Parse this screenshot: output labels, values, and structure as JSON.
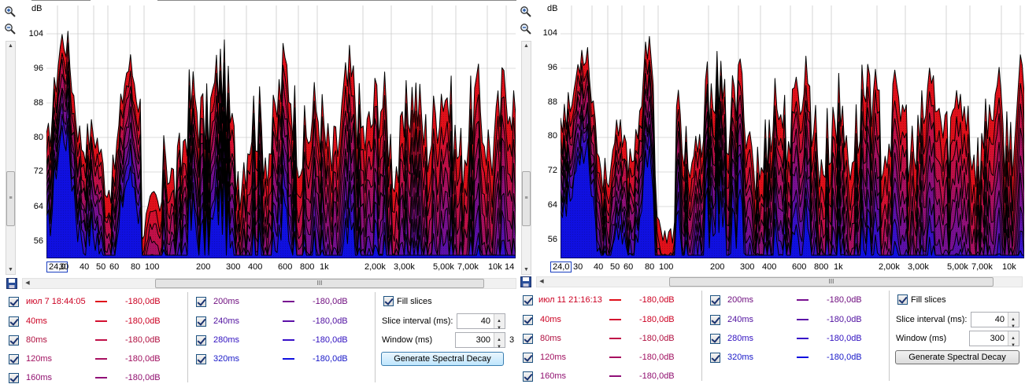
{
  "db_label": "dB",
  "y_labels": [
    "104",
    "96",
    "88",
    "80",
    "72",
    "64",
    "56"
  ],
  "x_start": "24,0",
  "x_labels": [
    "30",
    "40",
    "50",
    "60",
    "80",
    "100",
    "200",
    "300",
    "400",
    "600",
    "800",
    "1k",
    "2,00k",
    "3,00k",
    "5,00k",
    "7,00k",
    "10k",
    "14"
  ],
  "colors": {
    "accent": "#d01020",
    "red_text": "#cc0022",
    "blue_text": "#2020b0",
    "purple_text": "#701080"
  },
  "icons": [
    "zoom-in-icon",
    "zoom-out-icon",
    "save-icon"
  ],
  "left": {
    "slices_col1": [
      {
        "name": "июл 7 18:44:05",
        "value": "-180,0dB",
        "color": "#e0101a"
      },
      {
        "name": "40ms",
        "value": "-180,0dB",
        "color": "#d41030"
      },
      {
        "name": "80ms",
        "value": "-180,0dB",
        "color": "#c01048"
      },
      {
        "name": "120ms",
        "value": "-180,0dB",
        "color": "#a81060"
      },
      {
        "name": "160ms",
        "value": "-180,0dB",
        "color": "#901078"
      }
    ],
    "slices_col2": [
      {
        "name": "200ms",
        "value": "-180,0dB",
        "color": "#781090"
      },
      {
        "name": "240ms",
        "value": "-180,0dB",
        "color": "#5c10a8"
      },
      {
        "name": "280ms",
        "value": "-180,0dB",
        "color": "#3810c8"
      },
      {
        "name": "320ms",
        "value": "-180,0dB",
        "color": "#1010e0"
      }
    ],
    "fill_slices": "Fill slices",
    "slice_interval_label": "Slice interval (ms):",
    "slice_interval": "40",
    "window_label": "Window (ms)",
    "window": "300",
    "window_suffix": "3",
    "generate_button": "Generate Spectral Decay"
  },
  "right": {
    "slices_col1": [
      {
        "name": "июл 11 21:16:13",
        "value": "-180,0dB",
        "color": "#e0101a"
      },
      {
        "name": "40ms",
        "value": "-180,0dB",
        "color": "#d41030"
      },
      {
        "name": "80ms",
        "value": "-180,0dB",
        "color": "#c01048"
      },
      {
        "name": "120ms",
        "value": "-180,0dB",
        "color": "#a81060"
      },
      {
        "name": "160ms",
        "value": "-180,0dB",
        "color": "#901078"
      }
    ],
    "slices_col2": [
      {
        "name": "200ms",
        "value": "-180,0dB",
        "color": "#781090"
      },
      {
        "name": "240ms",
        "value": "-180,0dB",
        "color": "#5c10a8"
      },
      {
        "name": "280ms",
        "value": "-180,0dB",
        "color": "#3810c8"
      },
      {
        "name": "320ms",
        "value": "-180,0dB",
        "color": "#1010e0"
      }
    ],
    "fill_slices": "Fill slices",
    "slice_interval_label": "Slice interval (ms):",
    "slice_interval": "40",
    "window_label": "Window (ms)",
    "window": "300",
    "generate_button": "Generate Spectral Decay"
  }
}
